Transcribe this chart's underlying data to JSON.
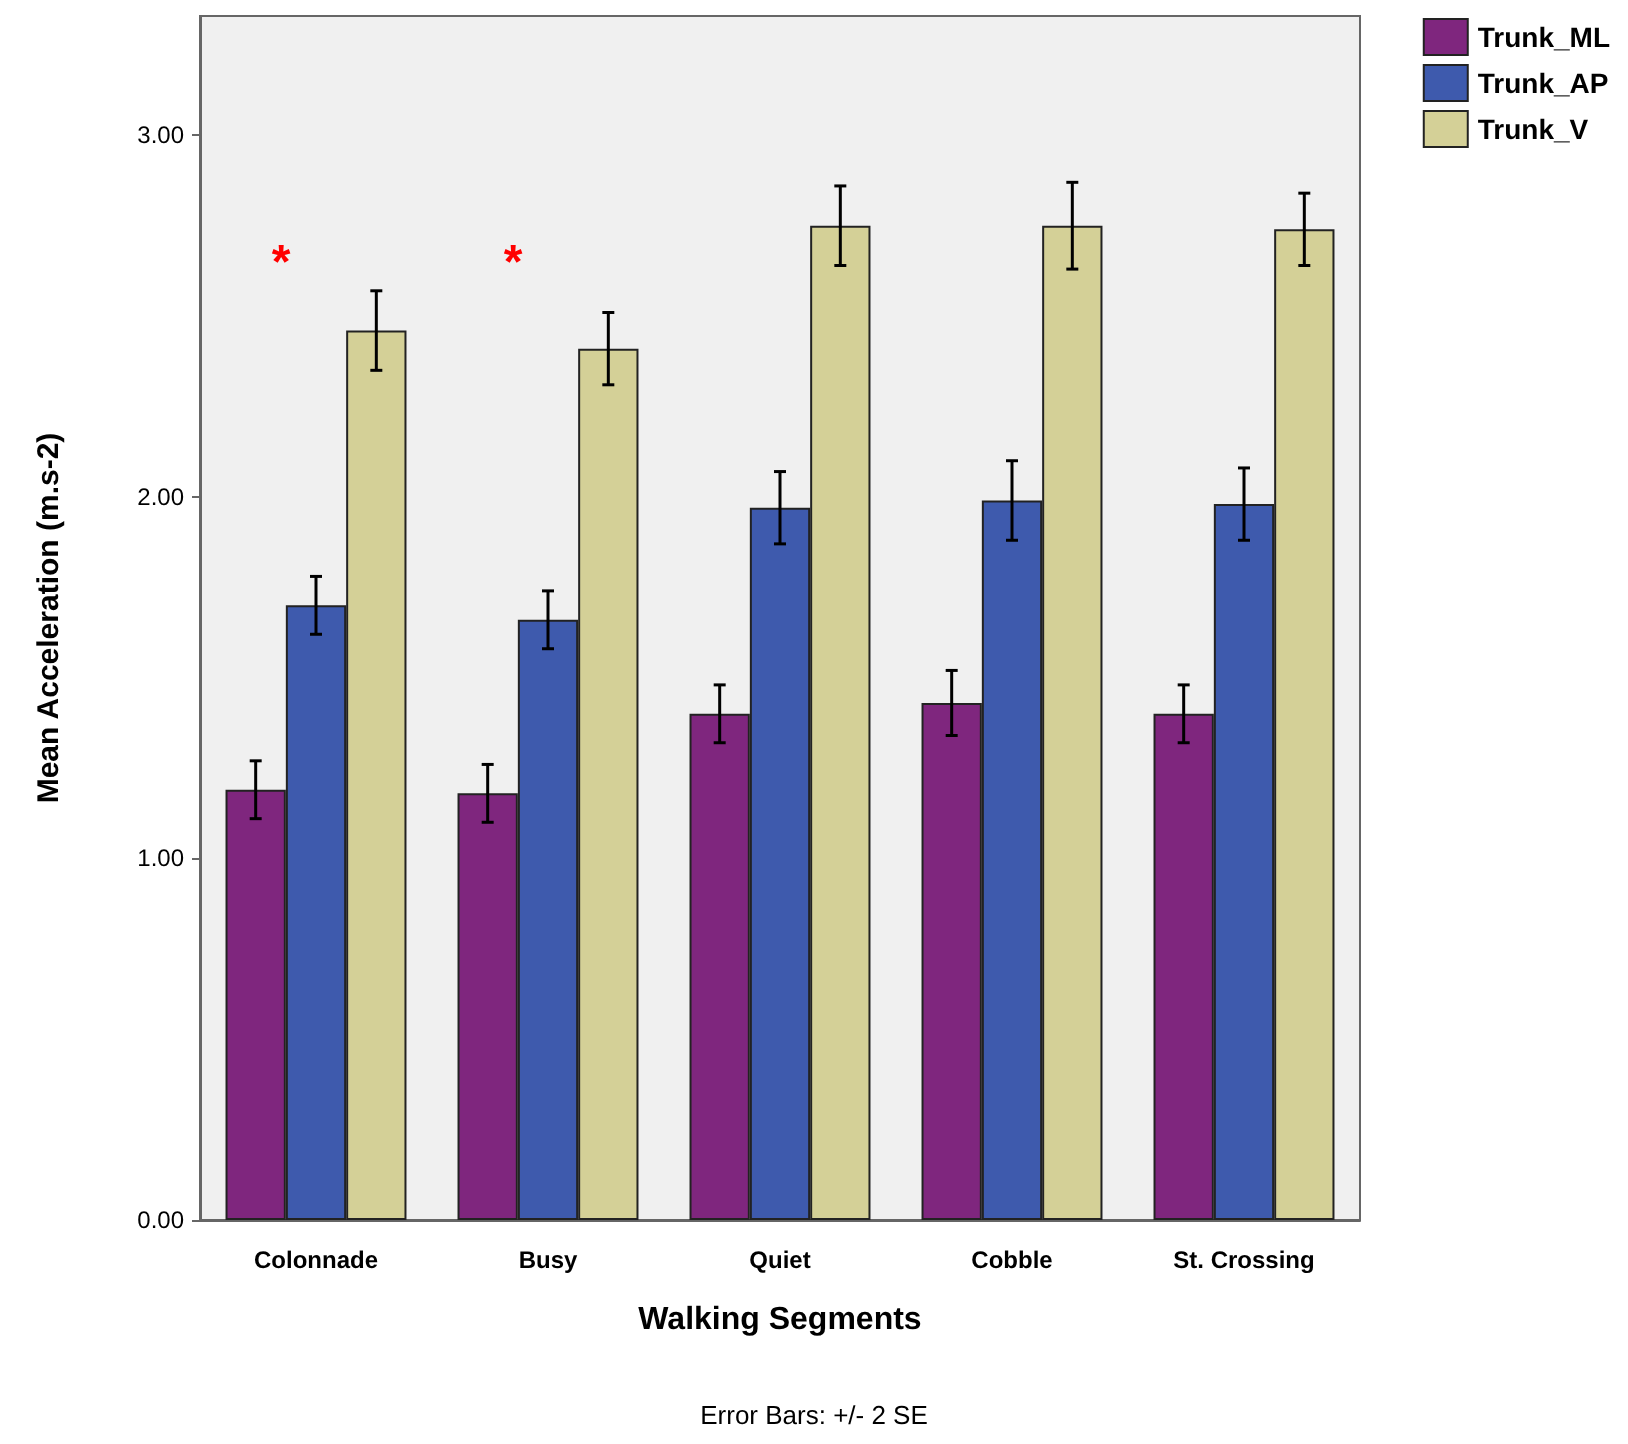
{
  "chart_data": {
    "type": "bar",
    "xlabel": "Walking Segments",
    "ylabel": "Mean Acceleration (m.s-2)",
    "categories": [
      "Colonnade",
      "Busy",
      "Quiet",
      "Cobble",
      "St. Crossing"
    ],
    "series": [
      {
        "name": "Trunk_ML",
        "color": "#7f267e",
        "values": [
          1.19,
          1.18,
          1.4,
          1.43,
          1.4
        ],
        "errors": [
          0.08,
          0.08,
          0.08,
          0.09,
          0.08
        ]
      },
      {
        "name": "Trunk_AP",
        "color": "#3e5aad",
        "values": [
          1.7,
          1.66,
          1.97,
          1.99,
          1.98
        ],
        "errors": [
          0.08,
          0.08,
          0.1,
          0.11,
          0.1
        ]
      },
      {
        "name": "Trunk_V",
        "color": "#d4d097",
        "values": [
          2.46,
          2.41,
          2.75,
          2.75,
          2.74
        ],
        "errors": [
          0.11,
          0.1,
          0.11,
          0.12,
          0.1
        ]
      }
    ],
    "ylim": [
      0,
      3.33
    ],
    "yticks": [
      {
        "value": 0,
        "label": "0.00"
      },
      {
        "value": 1,
        "label": "1.00"
      },
      {
        "value": 2,
        "label": "2.00"
      },
      {
        "value": 3,
        "label": "3.00"
      }
    ],
    "annotations": [
      "*",
      "*",
      "Error Bars: +/- 2 SE"
    ],
    "grid": false,
    "legend": "top right"
  }
}
